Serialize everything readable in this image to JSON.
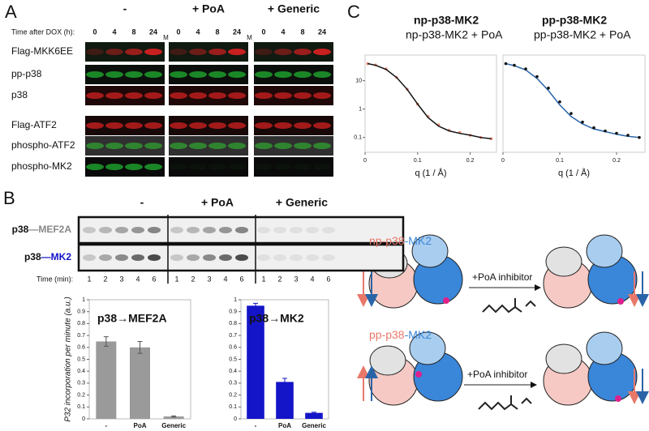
{
  "panel_labels": [
    "A",
    "B",
    "C"
  ],
  "blot": {
    "header_label": "Time after DOX (h):",
    "groups": [
      "-",
      "+ PoA",
      "+ Generic"
    ],
    "times": [
      "0",
      "4",
      "8",
      "24"
    ],
    "marker": "M",
    "rows": [
      "Flag-MKK6EE",
      "pp-p38",
      "p38",
      "Flag-ATF2",
      "phospho-ATF2",
      "phospho-MK2"
    ]
  },
  "gel": {
    "groups": [
      "-",
      "+ PoA",
      "+ Generic"
    ],
    "rows": [
      {
        "substrate_kinase": "p38",
        "substrate": "—MEF2A"
      },
      {
        "substrate_kinase": "p38",
        "substrate": "—MK2"
      }
    ],
    "time_label": "Time (min):",
    "times": [
      "1",
      "2",
      "3",
      "4",
      "6"
    ]
  },
  "chart_data": [
    {
      "type": "bar",
      "title": "p38→MEF2A",
      "y_label": "P32 incorporation per minute (a.u.)",
      "categories": [
        "-",
        "PoA",
        "Generic"
      ],
      "values": [
        0.65,
        0.6,
        0.02
      ],
      "errors": [
        0.04,
        0.05,
        0.005
      ],
      "color": "#9a9a9a",
      "ylim": [
        0,
        1
      ],
      "yticks": [
        0,
        0.1,
        0.2,
        0.3,
        0.4,
        0.5,
        0.6,
        0.7,
        0.8,
        0.9,
        1
      ]
    },
    {
      "type": "bar",
      "title": "p38→MK2",
      "categories": [
        "-",
        "PoA",
        "Generic"
      ],
      "values": [
        0.95,
        0.31,
        0.05
      ],
      "errors": [
        0.02,
        0.03,
        0.005
      ],
      "color": "#1414c8",
      "ylim": [
        0,
        1
      ],
      "yticks": [
        0,
        0.1,
        0.2,
        0.3,
        0.4,
        0.5,
        0.6,
        0.7,
        0.8,
        0.9,
        1
      ]
    },
    {
      "type": "scatter",
      "x_label": "q (1 / Å)",
      "log_y": true,
      "x": [
        0.005,
        0.02,
        0.04,
        0.06,
        0.08,
        0.1,
        0.12,
        0.14,
        0.16,
        0.18,
        0.2,
        0.22,
        0.24
      ],
      "series": [
        {
          "name": "np-p38-MK2",
          "color": "#f0907c",
          "mode": "markers",
          "values": [
            40,
            36,
            26,
            13,
            5,
            1.5,
            0.55,
            0.28,
            0.18,
            0.15,
            0.12,
            0.1,
            0.09
          ]
        },
        {
          "name": "np-p38-MK2 + PoA",
          "color": "#111111",
          "mode": "line",
          "values": [
            40,
            35,
            25,
            13,
            5,
            1.5,
            0.5,
            0.25,
            0.17,
            0.14,
            0.12,
            0.1,
            0.09
          ]
        }
      ],
      "xlim": [
        0,
        0.25
      ],
      "ylim": [
        0.03,
        80
      ],
      "xticks": [
        0,
        0.1,
        0.2
      ],
      "yticks": [
        0.1,
        1,
        10
      ]
    },
    {
      "type": "scatter",
      "x_label": "q (1 / Å)",
      "log_y": true,
      "x": [
        0.005,
        0.02,
        0.04,
        0.06,
        0.08,
        0.1,
        0.12,
        0.14,
        0.16,
        0.18,
        0.2,
        0.22,
        0.24
      ],
      "series": [
        {
          "name": "pp-p38-MK2",
          "color": "#2a64a8",
          "mode": "line",
          "values": [
            40,
            34,
            24,
            12,
            4.5,
            1.4,
            0.55,
            0.3,
            0.2,
            0.16,
            0.13,
            0.11,
            0.1
          ]
        },
        {
          "name": "pp-p38-MK2 + PoA",
          "color": "#111111",
          "mode": "markers",
          "values": [
            40,
            35,
            26,
            14,
            5.5,
            1.8,
            0.7,
            0.35,
            0.22,
            0.17,
            0.14,
            0.12,
            0.1
          ]
        }
      ],
      "xlim": [
        0,
        0.25
      ],
      "ylim": [
        0.03,
        80
      ],
      "xticks": [
        0,
        0.1,
        0.2
      ]
    }
  ],
  "diagram": {
    "states": [
      {
        "kinase": "np-p38",
        "substrate": "-MK2",
        "inhibitor": "+PoA inhibitor"
      },
      {
        "kinase": "pp-p38",
        "substrate": "-MK2",
        "inhibitor": "+PoA inhibitor"
      }
    ]
  }
}
